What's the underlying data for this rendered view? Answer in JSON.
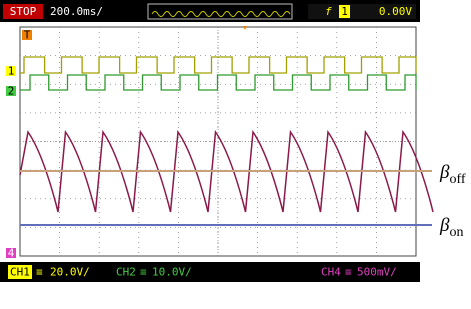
{
  "top_bar": {
    "status": "STOP",
    "timebase": "200.0ms/",
    "trigger_slope": "f",
    "trigger_source": "1",
    "trigger_level": "0.00V"
  },
  "markers": {
    "trigger": "T",
    "ch1": "1",
    "ch2": "2",
    "ch4": "4"
  },
  "channels": [
    {
      "name": "CH1",
      "scale": "20.0V/"
    },
    {
      "name": "CH2",
      "scale": "10.0V/"
    },
    {
      "name": "CH4",
      "scale": "500mV/"
    }
  ],
  "annotations": [
    {
      "symbol": "β",
      "subscript": "off"
    },
    {
      "symbol": "β",
      "subscript": "on"
    }
  ]
}
